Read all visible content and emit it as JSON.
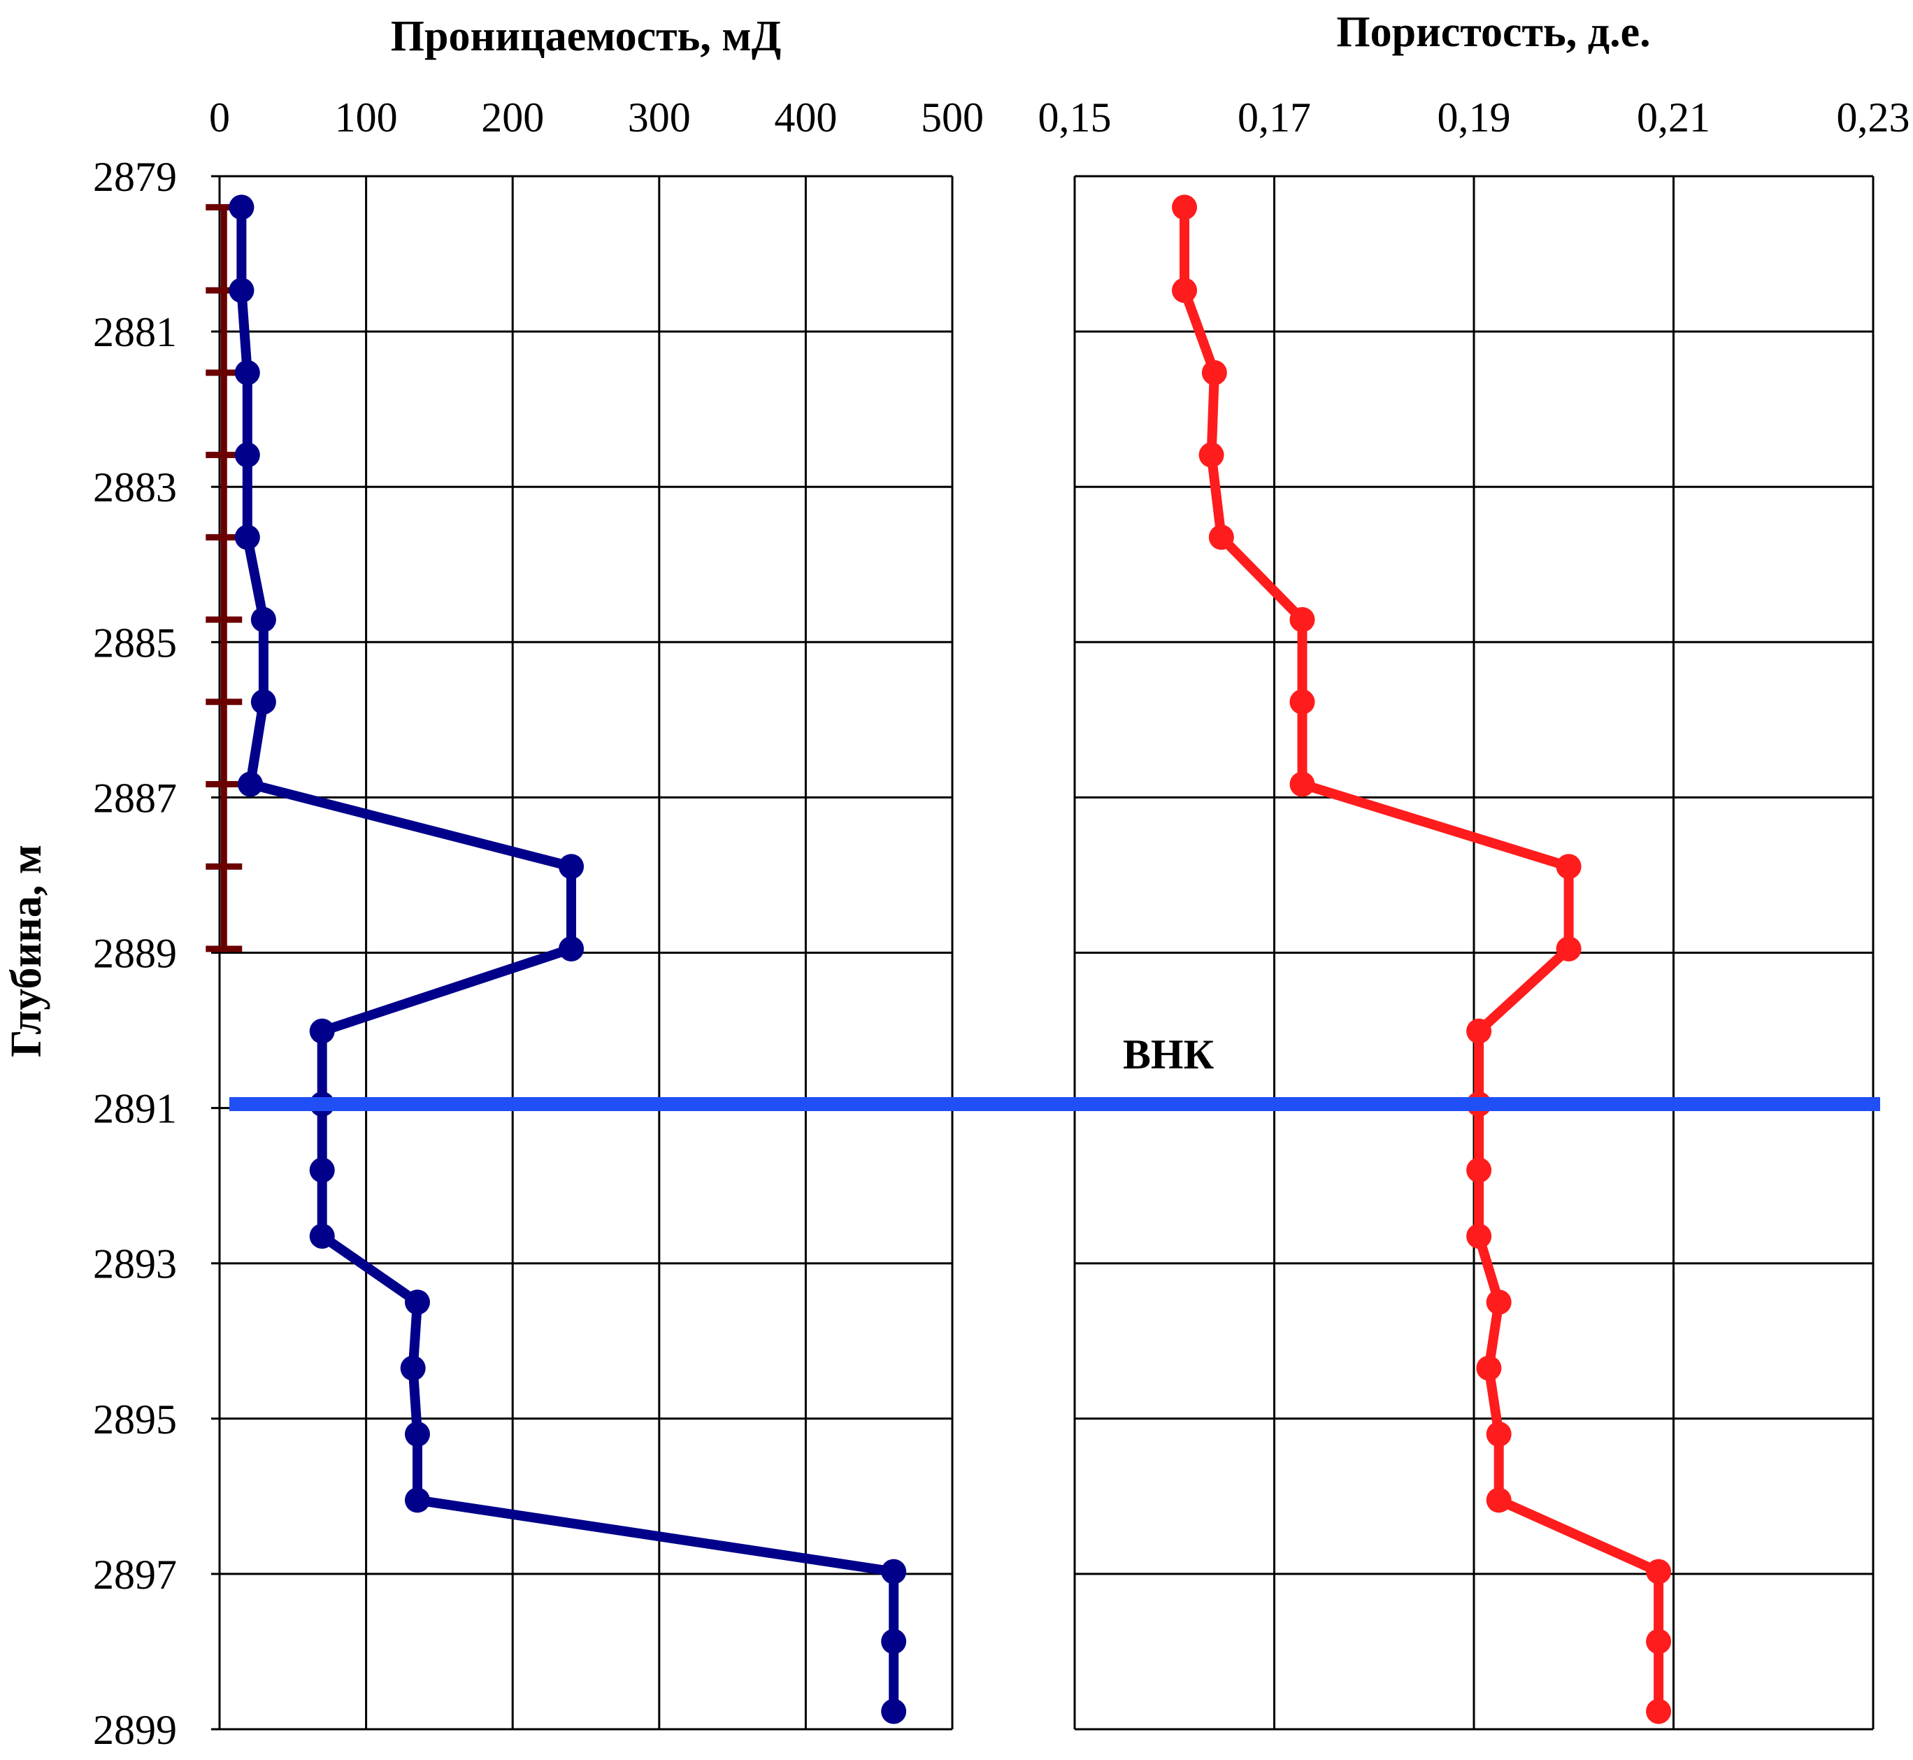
{
  "shared": {
    "ylabel": "Глубина, м",
    "ylim": [
      2879,
      2899
    ],
    "y_ticks": [
      "2879",
      "2881",
      "2883",
      "2885",
      "2887",
      "2889",
      "2891",
      "2893",
      "2895",
      "2897",
      "2899"
    ],
    "contact_line": {
      "label": "ВНК",
      "depth": 2890.95,
      "color": "#1f4ff5"
    }
  },
  "chart_data": [
    {
      "type": "line",
      "title": "Проницаемость, мД",
      "xlim": [
        0,
        500
      ],
      "x_ticks": [
        "0",
        "100",
        "200",
        "300",
        "400",
        "500"
      ],
      "x_tick_values": [
        0,
        100,
        200,
        300,
        400,
        500
      ],
      "series": [
        {
          "color": "#00008b",
          "points": [
            {
              "x": 15,
              "y": 2879.4
            },
            {
              "x": 15,
              "y": 2880.47
            },
            {
              "x": 19,
              "y": 2881.53
            },
            {
              "x": 19,
              "y": 2882.59
            },
            {
              "x": 19,
              "y": 2883.65
            },
            {
              "x": 30,
              "y": 2884.71
            },
            {
              "x": 30,
              "y": 2885.77
            },
            {
              "x": 21,
              "y": 2886.83
            },
            {
              "x": 240,
              "y": 2887.89
            },
            {
              "x": 240,
              "y": 2888.95
            },
            {
              "x": 70,
              "y": 2890.01
            },
            {
              "x": 70,
              "y": 2890.95
            },
            {
              "x": 70,
              "y": 2891.8
            },
            {
              "x": 70,
              "y": 2892.65
            },
            {
              "x": 135,
              "y": 2893.5
            },
            {
              "x": 132,
              "y": 2894.35
            },
            {
              "x": 135,
              "y": 2895.2
            },
            {
              "x": 135,
              "y": 2896.05
            },
            {
              "x": 460,
              "y": 2896.97
            },
            {
              "x": 460,
              "y": 2897.87
            },
            {
              "x": 460,
              "y": 2898.77
            }
          ]
        }
      ],
      "error_bars": {
        "color": "#6b0000",
        "x": 3,
        "depths": [
          2879.4,
          2880.47,
          2881.53,
          2882.59,
          2883.65,
          2884.71,
          2885.77,
          2886.83,
          2887.89,
          2888.95
        ]
      }
    },
    {
      "type": "line",
      "title": "Пористость, д.е.",
      "xlim": [
        0.15,
        0.23
      ],
      "x_ticks": [
        "0,15",
        "0,17",
        "0,19",
        "0,21",
        "0,23"
      ],
      "x_tick_values": [
        0.15,
        0.17,
        0.19,
        0.21,
        0.23
      ],
      "series": [
        {
          "color": "#ff1c1c",
          "points": [
            {
              "x": 0.161,
              "y": 2879.4
            },
            {
              "x": 0.161,
              "y": 2880.47
            },
            {
              "x": 0.164,
              "y": 2881.53
            },
            {
              "x": 0.1637,
              "y": 2882.59
            },
            {
              "x": 0.1647,
              "y": 2883.65
            },
            {
              "x": 0.1728,
              "y": 2884.71
            },
            {
              "x": 0.1728,
              "y": 2885.77
            },
            {
              "x": 0.1728,
              "y": 2886.83
            },
            {
              "x": 0.1995,
              "y": 2887.89
            },
            {
              "x": 0.1995,
              "y": 2888.95
            },
            {
              "x": 0.1905,
              "y": 2890.01
            },
            {
              "x": 0.1905,
              "y": 2890.95
            },
            {
              "x": 0.1905,
              "y": 2891.8
            },
            {
              "x": 0.1905,
              "y": 2892.65
            },
            {
              "x": 0.1925,
              "y": 2893.5
            },
            {
              "x": 0.1915,
              "y": 2894.35
            },
            {
              "x": 0.1925,
              "y": 2895.2
            },
            {
              "x": 0.1925,
              "y": 2896.05
            },
            {
              "x": 0.2085,
              "y": 2896.97
            },
            {
              "x": 0.2085,
              "y": 2897.87
            },
            {
              "x": 0.2085,
              "y": 2898.77
            }
          ]
        }
      ]
    }
  ]
}
